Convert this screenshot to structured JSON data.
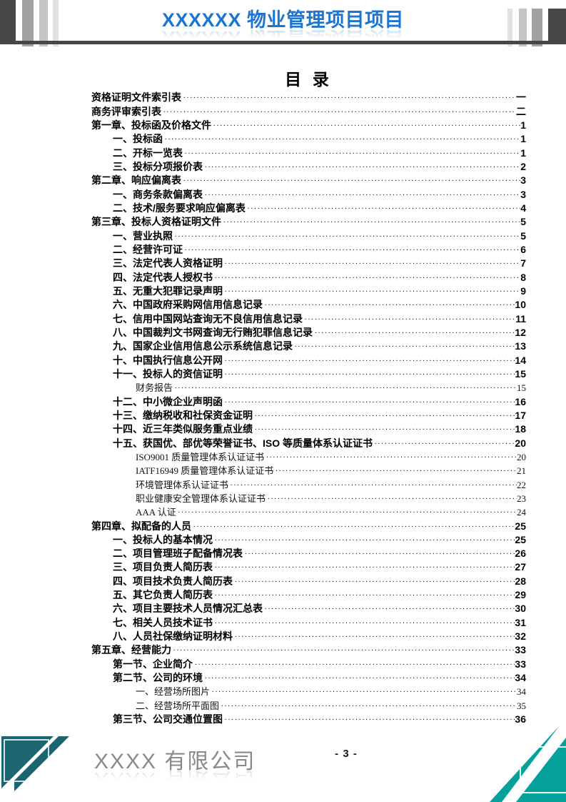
{
  "header": {
    "title": "XXXXXX 物业管理项目项目"
  },
  "toc": {
    "heading": "目 录",
    "entries": [
      {
        "label": "资格证明文件索引表",
        "page": "一",
        "level": 0
      },
      {
        "label": "商务评审索引表",
        "page": "二",
        "level": 0
      },
      {
        "label": "第一章、投标函及价格文件",
        "page": "1",
        "level": 0
      },
      {
        "label": "一、投标函",
        "page": "1",
        "level": 1
      },
      {
        "label": "二、开标一览表",
        "page": "1",
        "level": 1
      },
      {
        "label": "三、投标分项报价表",
        "page": "2",
        "level": 1
      },
      {
        "label": "第二章、响应偏离表",
        "page": "3",
        "level": 0
      },
      {
        "label": "一、商务条款偏离表",
        "page": "3",
        "level": 1
      },
      {
        "label": "二、技术/服务要求响应偏离表",
        "page": "4",
        "level": 1
      },
      {
        "label": "第三章、投标人资格证明文件",
        "page": "5",
        "level": 0
      },
      {
        "label": "一、营业执照",
        "page": "5",
        "level": 1
      },
      {
        "label": "二、经营许可证",
        "page": "6",
        "level": 1
      },
      {
        "label": "三、法定代表人资格证明",
        "page": "7",
        "level": 1
      },
      {
        "label": "四、法定代表人授权书",
        "page": "8",
        "level": 1
      },
      {
        "label": "五、无重大犯罪记录声明",
        "page": "9",
        "level": 1
      },
      {
        "label": "六、中国政府采购网信用信息记录",
        "page": "10",
        "level": 1
      },
      {
        "label": "七、信用中国网站查询无不良信用信息记录",
        "page": "11",
        "level": 1
      },
      {
        "label": "八、中国裁判文书网查询无行贿犯罪信息记录",
        "page": "12",
        "level": 1
      },
      {
        "label": "九、国家企业信用信息公示系统信息记录",
        "page": "13",
        "level": 1
      },
      {
        "label": "十、中国执行信息公开网",
        "page": "14",
        "level": 1
      },
      {
        "label": "十一、投标人的资信证明",
        "page": "15",
        "level": 1
      },
      {
        "label": "财务报告",
        "page": "15",
        "level": 2
      },
      {
        "label": "十二、中小微企业声明函",
        "page": "16",
        "level": 1
      },
      {
        "label": "十三、缴纳税收和社保资金证明",
        "page": "17",
        "level": 1
      },
      {
        "label": "十四、近三年类似服务重点业绩",
        "page": "18",
        "level": 1
      },
      {
        "label": "十五、获国优、部优等荣誉证书、ISO 等质量体系认证证书",
        "page": "20",
        "level": 1
      },
      {
        "label": "ISO9001 质量管理体系认证证书",
        "page": "20",
        "level": 2
      },
      {
        "label": "IATF16949 质量管理体系认证证书",
        "page": "21",
        "level": 2
      },
      {
        "label": "环境管理体系认证证书",
        "page": "22",
        "level": 2
      },
      {
        "label": "职业健康安全管理体系认证证书",
        "page": "23",
        "level": 2
      },
      {
        "label": "AAA 认证",
        "page": "24",
        "level": 2
      },
      {
        "label": "第四章、拟配备的人员",
        "page": "25",
        "level": 0
      },
      {
        "label": "一、投标人的基本情况",
        "page": "25",
        "level": 1
      },
      {
        "label": "二、项目管理班子配备情况表",
        "page": "26",
        "level": 1
      },
      {
        "label": "三、项目负责人简历表",
        "page": "27",
        "level": 1
      },
      {
        "label": "四、项目技术负责人简历表",
        "page": "28",
        "level": 1
      },
      {
        "label": "五、其它负责人简历表",
        "page": "29",
        "level": 1
      },
      {
        "label": "六、项目主要技术人员情况汇总表",
        "page": "30",
        "level": 1
      },
      {
        "label": "七、相关人员技术证书",
        "page": "31",
        "level": 1
      },
      {
        "label": "八、人员社保缴纳证明材料",
        "page": "32",
        "level": 1
      },
      {
        "label": "第五章、经营能力",
        "page": "33",
        "level": 0
      },
      {
        "label": "第一节、企业简介",
        "page": "33",
        "level": 1
      },
      {
        "label": "第二节、公司的环境",
        "page": "34",
        "level": 1
      },
      {
        "label": "一、经营场所图片",
        "page": "34",
        "level": 2
      },
      {
        "label": "二、经营场所平面图",
        "page": "35",
        "level": 2
      },
      {
        "label": "第三节、公司交通位置图",
        "page": "36",
        "level": 1
      }
    ]
  },
  "footer": {
    "company": "XXXX 有限公司",
    "page_number": "- 3 -"
  },
  "colors": {
    "header_blue": "#1b76d3",
    "bar_dark": "#474747",
    "bar_gray1": "#a2a2a2",
    "bar_gray2": "#c4c4c4",
    "bar_gray3": "#e1e1e1",
    "teal_bottom_left": "#1a6570",
    "teal_bottom_right": "#04a29b",
    "footer_text_gray": "#8a8a8a"
  }
}
